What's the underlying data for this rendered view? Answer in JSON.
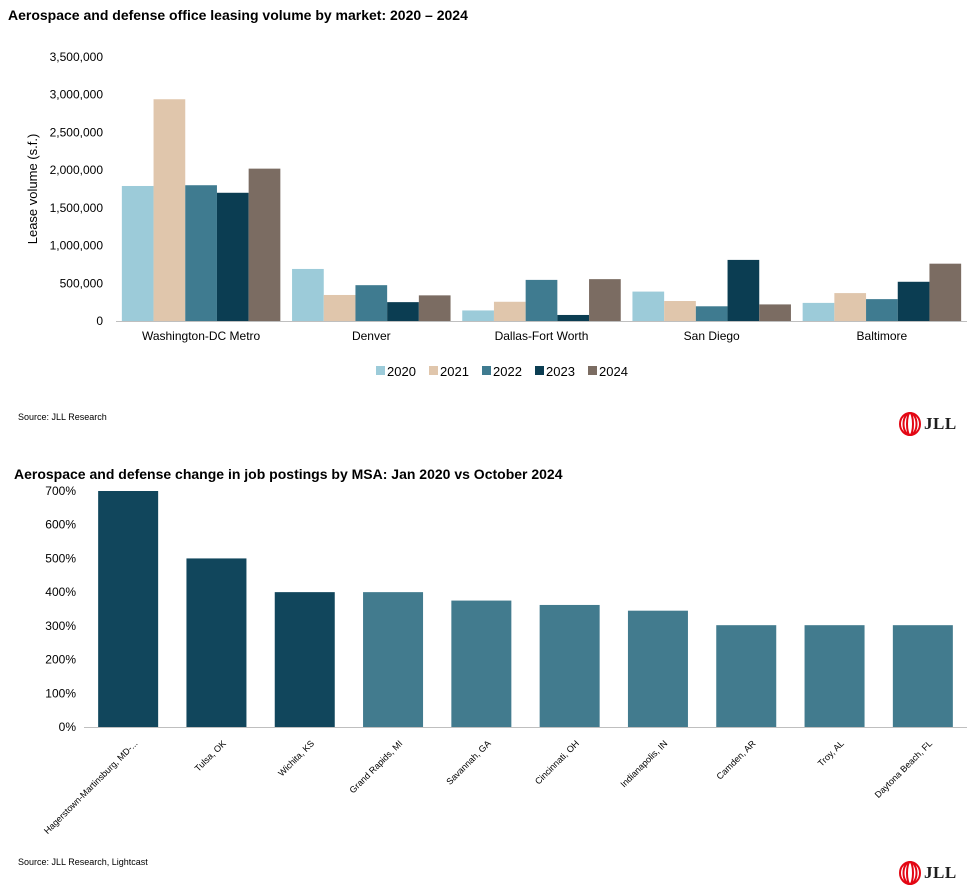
{
  "chart_data": [
    {
      "type": "bar",
      "title": "Aerospace and defense office leasing volume by market: 2020 – 2024",
      "ylabel": "Lease volume (s.f.)",
      "xlabel": "",
      "ylim": [
        0,
        3500000
      ],
      "yticks": [
        0,
        500000,
        1000000,
        1500000,
        2000000,
        2500000,
        3000000,
        3500000
      ],
      "ytick_labels": [
        "0",
        "500,000",
        "1,000,000",
        "1,500,000",
        "2,000,000",
        "2,500,000",
        "3,000,000",
        "3,500,000"
      ],
      "categories": [
        "Washington-DC Metro",
        "Denver",
        "Dallas-Fort Worth",
        "San Diego",
        "Baltimore"
      ],
      "series": [
        {
          "name": "2020",
          "color": "#9ccbd9",
          "values": [
            1790000,
            690000,
            140000,
            390000,
            240000
          ]
        },
        {
          "name": "2021",
          "color": "#e0c6ac",
          "values": [
            2940000,
            345000,
            255000,
            265000,
            370000
          ]
        },
        {
          "name": "2022",
          "color": "#3f7b90",
          "values": [
            1800000,
            475000,
            545000,
            195000,
            290000
          ]
        },
        {
          "name": "2023",
          "color": "#0b3d52",
          "values": [
            1700000,
            250000,
            80000,
            810000,
            520000
          ]
        },
        {
          "name": "2024",
          "color": "#7b6c62",
          "values": [
            2020000,
            340000,
            555000,
            220000,
            760000
          ]
        }
      ],
      "legend": "bottom",
      "grid": false,
      "source": "Source: JLL Research"
    },
    {
      "type": "bar",
      "title": "Aerospace and defense change in job postings by MSA: Jan 2020 vs October 2024",
      "ylabel": "",
      "xlabel": "",
      "ylim": [
        0,
        700
      ],
      "yticks": [
        0,
        100,
        200,
        300,
        400,
        500,
        600,
        700
      ],
      "ytick_labels": [
        "0%",
        "100%",
        "200%",
        "300%",
        "400%",
        "500%",
        "600%",
        "700%"
      ],
      "categories": [
        "Hagerstown-Martinsburg, MD-...",
        "Tulsa, OK",
        "Wichita, KS",
        "Grand Rapids, MI",
        "Savannah, GA",
        "Cincinnati, OH",
        "Indianapolis, IN",
        "Camden, AR",
        "Troy, AL",
        "Daytona Beach, FL"
      ],
      "values": [
        700,
        500,
        400,
        400,
        375,
        362,
        345,
        302,
        302,
        302
      ],
      "colors": [
        "#11465c",
        "#11465c",
        "#11465c",
        "#427b8e",
        "#427b8e",
        "#427b8e",
        "#427b8e",
        "#427b8e",
        "#427b8e",
        "#427b8e"
      ],
      "grid": false,
      "source": "Source: JLL Research, Lightcast"
    }
  ],
  "brand": {
    "logo_text": "JLL",
    "logo_color": "#e30613"
  }
}
